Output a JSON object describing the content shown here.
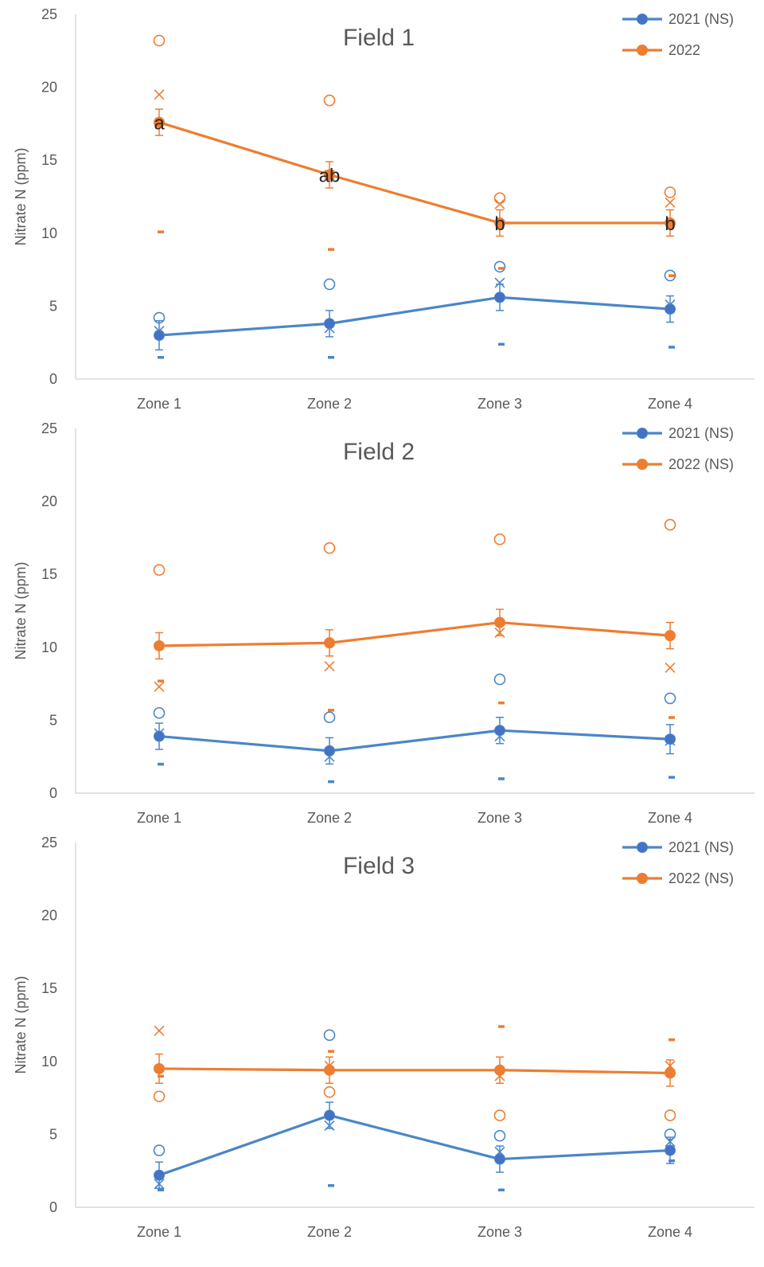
{
  "chart_data": [
    {
      "type": "line",
      "title": "Field 1",
      "ylabel": "Nitrate N (ppm)",
      "xlabel": "",
      "categories": [
        "Zone 1",
        "Zone 2",
        "Zone 3",
        "Zone 4"
      ],
      "ylim": [
        0,
        25
      ],
      "yticks": [
        "0",
        "5",
        "10",
        "15",
        "20",
        "25"
      ],
      "legend_position": "top-right",
      "series": [
        {
          "name": "2021 (NS)",
          "color": "#4a86c8",
          "values": [
            3.0,
            3.8,
            5.6,
            4.8
          ],
          "err": [
            1.0,
            0.9,
            0.9,
            0.9
          ],
          "x_marks": [
            3.3,
            3.5,
            6.6,
            5.1
          ],
          "outliers_high": [
            4.2,
            6.5,
            7.7,
            7.1
          ],
          "outliers_low": [
            1.5,
            1.5,
            2.4,
            2.2
          ]
        },
        {
          "name": "2022",
          "color": "#ed7d31",
          "values": [
            17.6,
            14.0,
            10.7,
            10.7
          ],
          "err": [
            0.9,
            0.9,
            0.9,
            0.9
          ],
          "x_marks": [
            19.5,
            14.0,
            12.0,
            12.1
          ],
          "outliers_high": [
            23.2,
            19.1,
            12.4,
            12.8
          ],
          "outliers_low": [
            10.1,
            8.9,
            7.6,
            7.1
          ]
        }
      ],
      "annotations": [
        {
          "category": "Zone 1",
          "y": 17.6,
          "text": "a"
        },
        {
          "category": "Zone 2",
          "y": 14.0,
          "text": "ab"
        },
        {
          "category": "Zone 3",
          "y": 10.7,
          "text": "b"
        },
        {
          "category": "Zone 4",
          "y": 10.7,
          "text": "b"
        }
      ]
    },
    {
      "type": "line",
      "title": "Field 2",
      "ylabel": "Nitrate N (ppm)",
      "xlabel": "",
      "categories": [
        "Zone 1",
        "Zone 2",
        "Zone 3",
        "Zone 4"
      ],
      "ylim": [
        0,
        25
      ],
      "yticks": [
        "0",
        "5",
        "10",
        "15",
        "20",
        "25"
      ],
      "legend_position": "top-right",
      "series": [
        {
          "name": "2021 (NS)",
          "color": "#4a86c8",
          "values": [
            3.9,
            2.9,
            4.3,
            3.7
          ],
          "err": [
            0.9,
            0.9,
            0.9,
            1.0
          ],
          "x_marks": [
            4.1,
            2.5,
            3.9,
            3.6
          ],
          "outliers_high": [
            5.5,
            5.2,
            7.8,
            6.5
          ],
          "outliers_low": [
            2.0,
            0.8,
            1.0,
            1.1
          ]
        },
        {
          "name": "2022 (NS)",
          "color": "#ed7d31",
          "values": [
            10.1,
            10.3,
            11.7,
            10.8
          ],
          "err": [
            0.9,
            0.9,
            0.9,
            0.9
          ],
          "x_marks": [
            7.3,
            8.7,
            11.0,
            8.6
          ],
          "outliers_high": [
            15.3,
            16.8,
            17.4,
            18.4
          ],
          "outliers_low": [
            7.7,
            5.7,
            6.2,
            5.2
          ]
        }
      ],
      "annotations": []
    },
    {
      "type": "line",
      "title": "Field 3",
      "ylabel": "Nitrate N (ppm)",
      "xlabel": "",
      "categories": [
        "Zone 1",
        "Zone 2",
        "Zone 3",
        "Zone 4"
      ],
      "ylim": [
        0,
        25
      ],
      "yticks": [
        "0",
        "5",
        "10",
        "15",
        "20",
        "25"
      ],
      "legend_position": "top-right",
      "series": [
        {
          "name": "2021 (NS)",
          "color": "#4a86c8",
          "values": [
            2.2,
            6.3,
            3.3,
            3.9
          ],
          "err": [
            0.9,
            0.9,
            0.9,
            0.9
          ],
          "x_marks": [
            1.6,
            5.6,
            3.8,
            4.5
          ],
          "outliers_high": [
            3.9,
            11.8,
            4.9,
            5.0
          ],
          "outliers_low": [
            1.2,
            1.5,
            1.2,
            3.2
          ]
        },
        {
          "name": "2022 (NS)",
          "color": "#ed7d31",
          "values": [
            9.5,
            9.4,
            9.4,
            9.2
          ],
          "err": [
            1.0,
            0.9,
            0.9,
            0.9
          ],
          "x_marks": [
            12.1,
            9.7,
            9.0,
            9.7
          ],
          "outliers_high": [
            7.6,
            7.9,
            6.3,
            6.3
          ],
          "outliers_low": [
            9.0,
            10.7,
            12.4,
            11.5
          ]
        }
      ],
      "annotations": []
    }
  ]
}
